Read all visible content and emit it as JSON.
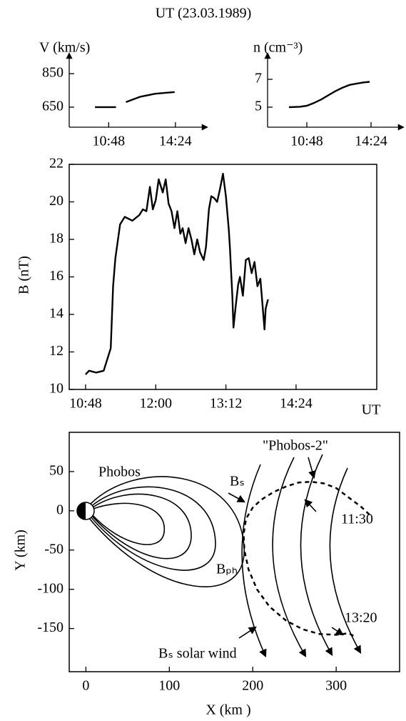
{
  "title": "UT (23.03.1989)",
  "chart_data": [
    {
      "type": "line",
      "ylabel": "V (km/s)",
      "x": [
        10.06,
        11.19,
        null,
        11.73,
        12.5,
        13.3,
        14.36
      ],
      "values": [
        650,
        650,
        null,
        680,
        712,
        730,
        740
      ],
      "xlim": [
        8.67,
        16.1
      ],
      "ylim": [
        530,
        970
      ],
      "xticks": [
        {
          "value": 10.8,
          "label": "10:48"
        },
        {
          "value": 14.4,
          "label": "14:24"
        }
      ],
      "yticks": [
        650,
        850
      ],
      "color": "#000000"
    },
    {
      "type": "line",
      "ylabel": "n (cm⁻³)",
      "x": [
        9.8,
        10.4,
        10.8,
        11.2,
        11.6,
        12.0,
        12.4,
        12.8,
        13.2,
        13.6,
        14.0,
        14.32
      ],
      "values": [
        5.0,
        5.03,
        5.1,
        5.3,
        5.55,
        5.85,
        6.15,
        6.4,
        6.6,
        6.7,
        6.78,
        6.82
      ],
      "xlim": [
        8.6,
        16.2
      ],
      "ylim": [
        3.56,
        8.85
      ],
      "xticks": [
        {
          "value": 10.8,
          "label": "10:48"
        },
        {
          "value": 14.4,
          "label": "14:24"
        }
      ],
      "yticks": [
        5,
        7
      ],
      "color": "#000000"
    },
    {
      "type": "line",
      "ylabel": "B (nT)",
      "xlabel": "UT",
      "frame": true,
      "x": [
        10.8,
        10.86,
        10.98,
        11.11,
        11.17,
        11.23,
        11.27,
        11.31,
        11.39,
        11.47,
        11.6,
        11.72,
        11.78,
        11.84,
        11.9,
        11.95,
        12.0,
        12.05,
        12.12,
        12.17,
        12.22,
        12.27,
        12.32,
        12.37,
        12.42,
        12.46,
        12.51,
        12.56,
        12.61,
        12.66,
        12.71,
        12.76,
        12.82,
        12.86,
        12.91,
        12.95,
        13.0,
        13.05,
        13.1,
        13.15,
        13.2,
        13.25,
        13.27,
        13.31,
        13.33,
        13.37,
        13.41,
        13.44,
        13.49,
        13.54,
        13.59,
        13.64,
        13.69,
        13.74,
        13.79,
        13.84,
        13.86,
        13.88,
        13.92
      ],
      "values": [
        10.8,
        11.0,
        10.9,
        11.0,
        11.6,
        12.2,
        15.5,
        17.0,
        18.8,
        19.2,
        19.0,
        19.3,
        19.6,
        19.5,
        20.8,
        19.6,
        20.1,
        21.2,
        20.5,
        21.2,
        19.9,
        19.5,
        18.6,
        19.5,
        18.3,
        18.6,
        17.8,
        18.6,
        18.0,
        17.2,
        18.0,
        17.3,
        16.9,
        17.6,
        19.6,
        20.3,
        20.2,
        20.0,
        20.7,
        21.5,
        20.3,
        18.5,
        17.5,
        15.0,
        13.3,
        14.5,
        15.6,
        16.0,
        15.0,
        16.9,
        17.0,
        16.2,
        16.8,
        15.5,
        15.9,
        14.0,
        13.2,
        14.3,
        14.8
      ],
      "xlim": [
        10.52,
        15.78
      ],
      "ylim": [
        10,
        22
      ],
      "xticks": [
        {
          "value": 10.8,
          "label": "10:48"
        },
        {
          "value": 12.0,
          "label": "12:00"
        },
        {
          "value": 13.2,
          "label": "13:12"
        },
        {
          "value": 14.4,
          "label": "14:24"
        }
      ],
      "yticks": [
        10,
        12,
        14,
        16,
        18,
        20,
        22
      ],
      "color": "#000000"
    },
    {
      "type": "line",
      "xlabel": "X (km )",
      "ylabel": "Y (km)",
      "frame": true,
      "dashed": true,
      "x": [
        340,
        330,
        315,
        300,
        285,
        270,
        255,
        240,
        225,
        210,
        200,
        192,
        189,
        190,
        195,
        205,
        220,
        240,
        260,
        280,
        300,
        315,
        322
      ],
      "values": [
        -5,
        5,
        17,
        29,
        35,
        37,
        36,
        31,
        24,
        14,
        4,
        -10,
        -30,
        -50,
        -75,
        -100,
        -122,
        -140,
        -151,
        -157,
        -158,
        -156,
        -160
      ],
      "xlim": [
        -20,
        376
      ],
      "ylim": [
        -205,
        100
      ],
      "xticks": [
        0,
        100,
        200,
        300
      ],
      "yticks": [
        50,
        0,
        -50,
        -100,
        -150
      ],
      "color": "#000000",
      "annotations": [
        "Phobos",
        "\"Phobos-2\"",
        "Bₛ",
        "Bₚₕ",
        "11:30",
        "13:20",
        "Bₛ solar wind"
      ]
    }
  ]
}
